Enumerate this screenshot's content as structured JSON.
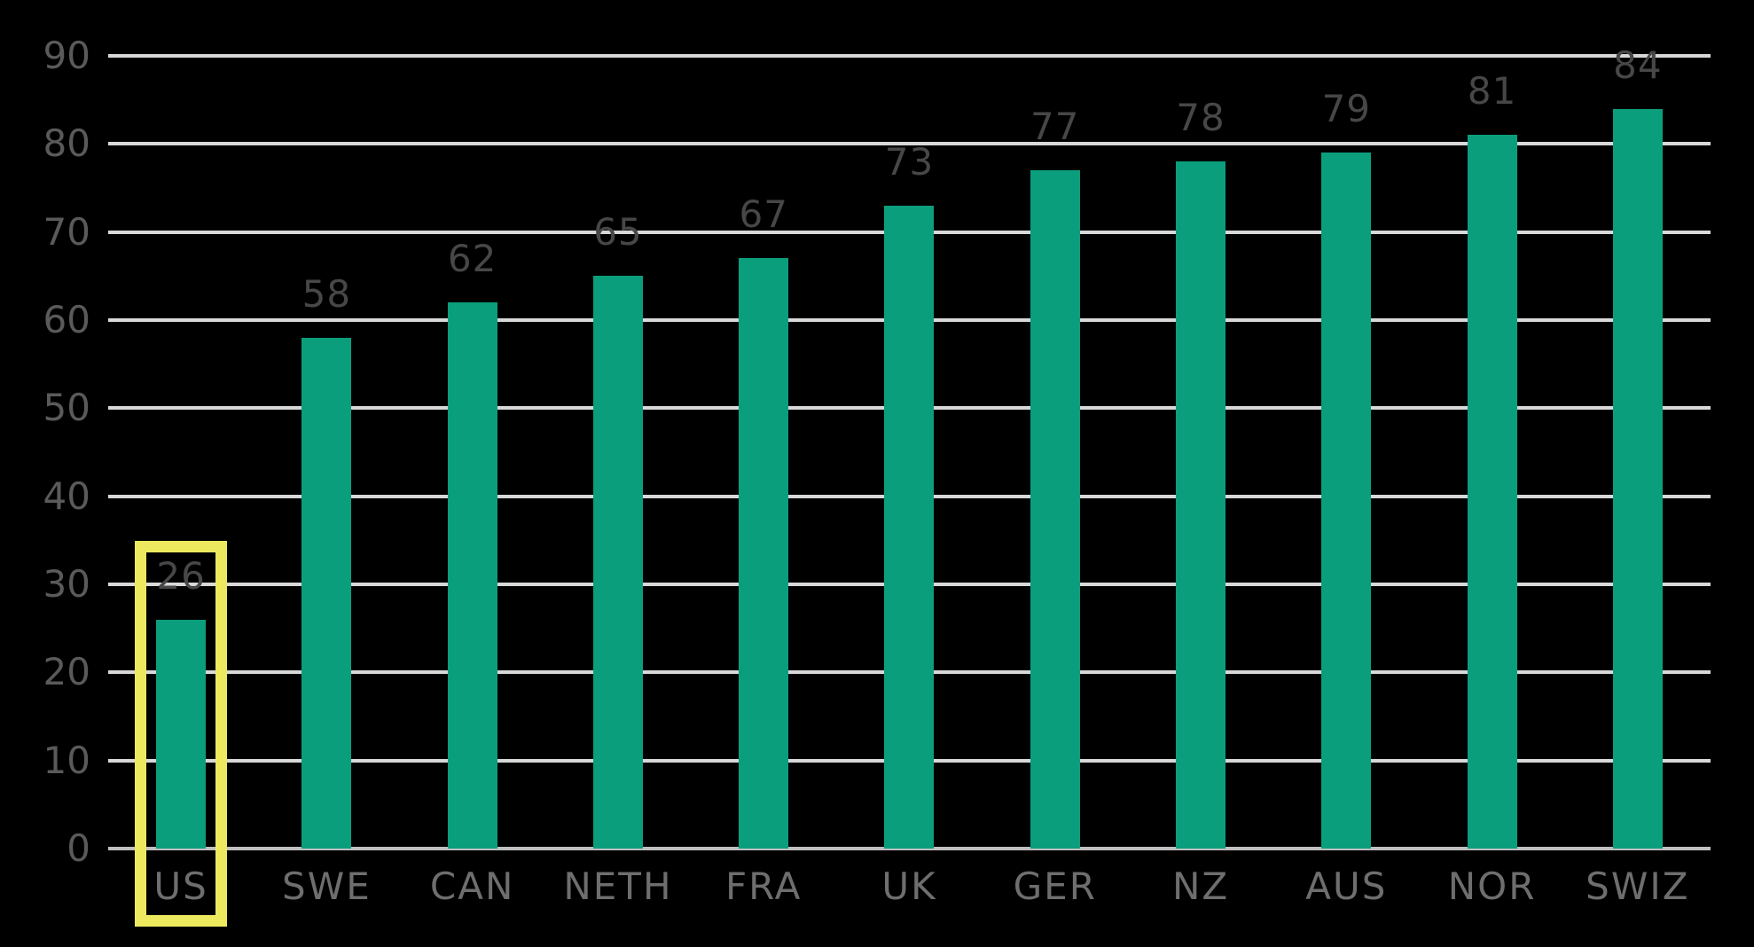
{
  "chart_data": {
    "type": "bar",
    "categories": [
      "US",
      "SWE",
      "CAN",
      "NETH",
      "FRA",
      "UK",
      "GER",
      "NZ",
      "AUS",
      "NOR",
      "SWIZ"
    ],
    "values": [
      26,
      58,
      62,
      65,
      67,
      73,
      77,
      78,
      79,
      81,
      84
    ],
    "title": "",
    "xlabel": "",
    "ylabel": "",
    "ylim": [
      0,
      90
    ],
    "yticks": [
      0,
      10,
      20,
      30,
      40,
      50,
      60,
      70,
      80,
      90
    ],
    "grid": true,
    "legend_position": "none",
    "highlighted_category": "US",
    "colors": {
      "background": "#000000",
      "bar": "#0B9E7D",
      "highlight_box": "#ECE95F",
      "gridline": "#D8D8D8",
      "baseline": "#BFBFBF",
      "ytick_label": "#5A5A5A",
      "value_label": "#474747",
      "xtick_label": "#6E6E6E"
    }
  }
}
